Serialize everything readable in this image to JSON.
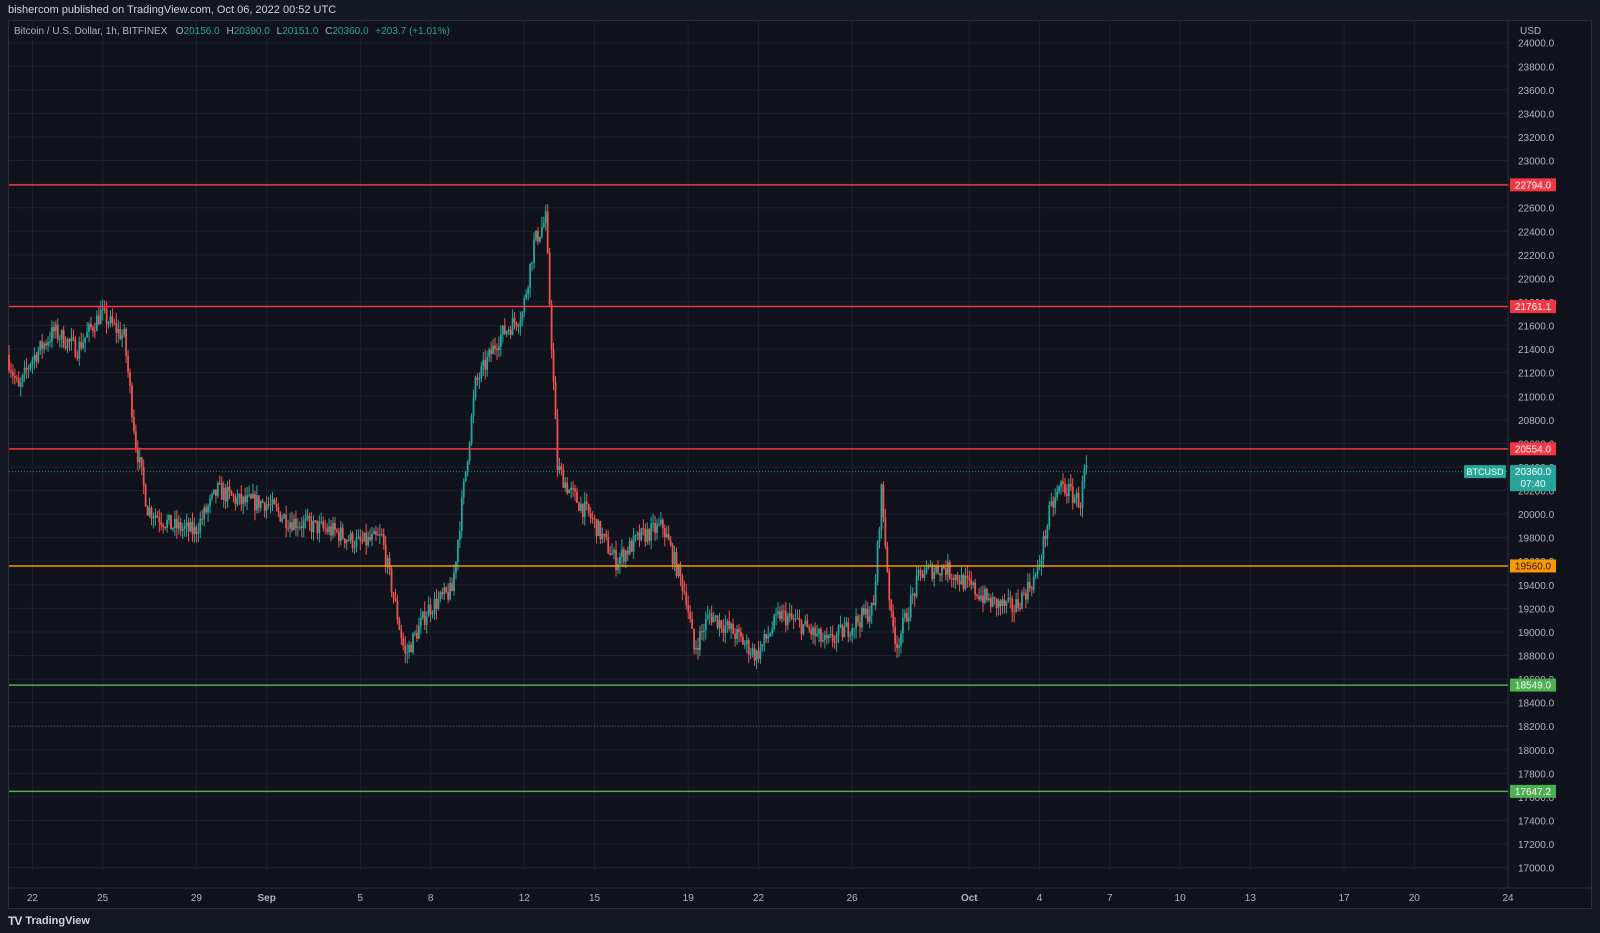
{
  "header": {
    "published_text": "bishercom published on TradingView.com, Oct 06, 2022 00:52 UTC"
  },
  "legend": {
    "symbol": "Bitcoin / U.S. Dollar, 1h, BITFINEX",
    "open_label": "O",
    "open_value": "20156.0",
    "high_label": "H",
    "high_value": "20390.0",
    "low_label": "L",
    "low_value": "20151.0",
    "close_label": "C",
    "close_value": "20360.0",
    "change": "+203.7 (+1.01%)"
  },
  "footer": {
    "brand": "TradingView",
    "logo_icon": "tradingview-logo-icon"
  },
  "colors": {
    "up": "#26a69a",
    "down": "#ef5350",
    "resistance": "#f23645",
    "pivot": "#ff9800",
    "support": "#4caf50",
    "price_tag": "#26a69a"
  },
  "chart_data": {
    "type": "candlestick",
    "symbol": "BTCUSD",
    "interval": "1h",
    "currency_label": "USD",
    "ylim": [
      16980,
      24040
    ],
    "y_ticks": [
      17000,
      17200,
      17400,
      17600,
      17800,
      18000,
      18200,
      18400,
      18600,
      18800,
      19000,
      19200,
      19400,
      19600,
      19800,
      20000,
      20200,
      20400,
      20600,
      20800,
      21000,
      21200,
      21400,
      21600,
      21800,
      22000,
      22200,
      22400,
      22600,
      22800,
      23000,
      23200,
      23400,
      23600,
      23800,
      24000
    ],
    "x_axis": {
      "start": "2022-08-21",
      "end": "2022-10-24",
      "ticks": [
        {
          "date": "2022-08-22",
          "label": "22"
        },
        {
          "date": "2022-08-25",
          "label": "25"
        },
        {
          "date": "2022-08-29",
          "label": "29"
        },
        {
          "date": "2022-09-01",
          "label": "Sep"
        },
        {
          "date": "2022-09-05",
          "label": "5"
        },
        {
          "date": "2022-09-08",
          "label": "8"
        },
        {
          "date": "2022-09-12",
          "label": "12"
        },
        {
          "date": "2022-09-15",
          "label": "15"
        },
        {
          "date": "2022-09-19",
          "label": "19"
        },
        {
          "date": "2022-09-22",
          "label": "22"
        },
        {
          "date": "2022-09-26",
          "label": "26"
        },
        {
          "date": "2022-10-01",
          "label": "Oct"
        },
        {
          "date": "2022-10-04",
          "label": "4"
        },
        {
          "date": "2022-10-07",
          "label": "7"
        },
        {
          "date": "2022-10-10",
          "label": "10"
        },
        {
          "date": "2022-10-13",
          "label": "13"
        },
        {
          "date": "2022-10-17",
          "label": "17"
        },
        {
          "date": "2022-10-20",
          "label": "20"
        },
        {
          "date": "2022-10-24",
          "label": "24"
        }
      ]
    },
    "horizontal_levels": [
      {
        "value": 22794.0,
        "label": "22794.0",
        "kind": "resistance"
      },
      {
        "value": 21761.1,
        "label": "21761.1",
        "kind": "resistance"
      },
      {
        "value": 20554.0,
        "label": "20554.0",
        "kind": "resistance"
      },
      {
        "value": 19560.0,
        "label": "19560.0",
        "kind": "pivot"
      },
      {
        "value": 18549.0,
        "label": "18549.0",
        "kind": "support"
      },
      {
        "value": 17647.2,
        "label": "17647.2",
        "kind": "support"
      }
    ],
    "extra_dotted_levels": [
      18200
    ],
    "last_price": {
      "value": 20360.0,
      "label": "20360.0",
      "ticker": "BTCUSD",
      "countdown": "07:40"
    },
    "price_path_keypoints": [
      [
        "2022-08-21",
        21350
      ],
      [
        "2022-08-21T12:00",
        21050
      ],
      [
        "2022-08-22",
        21300
      ],
      [
        "2022-08-23",
        21550
      ],
      [
        "2022-08-24",
        21400
      ],
      [
        "2022-08-25",
        21700
      ],
      [
        "2022-08-26",
        21500
      ],
      [
        "2022-08-26T12:00",
        20600
      ],
      [
        "2022-08-27",
        20050
      ],
      [
        "2022-08-28",
        19900
      ],
      [
        "2022-08-29",
        19850
      ],
      [
        "2022-08-30",
        20200
      ],
      [
        "2022-08-31",
        20100
      ],
      [
        "2022-09-01",
        20100
      ],
      [
        "2022-09-02",
        19950
      ],
      [
        "2022-09-03",
        19900
      ],
      [
        "2022-09-04",
        19850
      ],
      [
        "2022-09-05",
        19750
      ],
      [
        "2022-09-06",
        19800
      ],
      [
        "2022-09-06T18:00",
        19050
      ],
      [
        "2022-09-07",
        18800
      ],
      [
        "2022-09-08",
        19200
      ],
      [
        "2022-09-09",
        19350
      ],
      [
        "2022-09-10",
        21100
      ],
      [
        "2022-09-11",
        21500
      ],
      [
        "2022-09-12",
        21700
      ],
      [
        "2022-09-12T12:00",
        22300
      ],
      [
        "2022-09-13",
        22500
      ],
      [
        "2022-09-13T12:00",
        20400
      ],
      [
        "2022-09-14",
        20200
      ],
      [
        "2022-09-15",
        19950
      ],
      [
        "2022-09-16",
        19600
      ],
      [
        "2022-09-17",
        19800
      ],
      [
        "2022-09-18",
        19900
      ],
      [
        "2022-09-19",
        19300
      ],
      [
        "2022-09-19T08:00",
        18850
      ],
      [
        "2022-09-20",
        19150
      ],
      [
        "2022-09-21",
        19000
      ],
      [
        "2022-09-22",
        18800
      ],
      [
        "2022-09-23",
        19150
      ],
      [
        "2022-09-24",
        19050
      ],
      [
        "2022-09-25",
        18900
      ],
      [
        "2022-09-26",
        19050
      ],
      [
        "2022-09-27",
        19200
      ],
      [
        "2022-09-27T08:00",
        20200
      ],
      [
        "2022-09-27T18:00",
        19100
      ],
      [
        "2022-09-28",
        18900
      ],
      [
        "2022-09-29",
        19500
      ],
      [
        "2022-09-30",
        19550
      ],
      [
        "2022-10-01",
        19400
      ],
      [
        "2022-10-02",
        19250
      ],
      [
        "2022-10-03",
        19200
      ],
      [
        "2022-10-04",
        19500
      ],
      [
        "2022-10-04T12:00",
        20000
      ],
      [
        "2022-10-05",
        20250
      ],
      [
        "2022-10-05T20:00",
        20100
      ],
      [
        "2022-10-06",
        20360
      ]
    ]
  }
}
